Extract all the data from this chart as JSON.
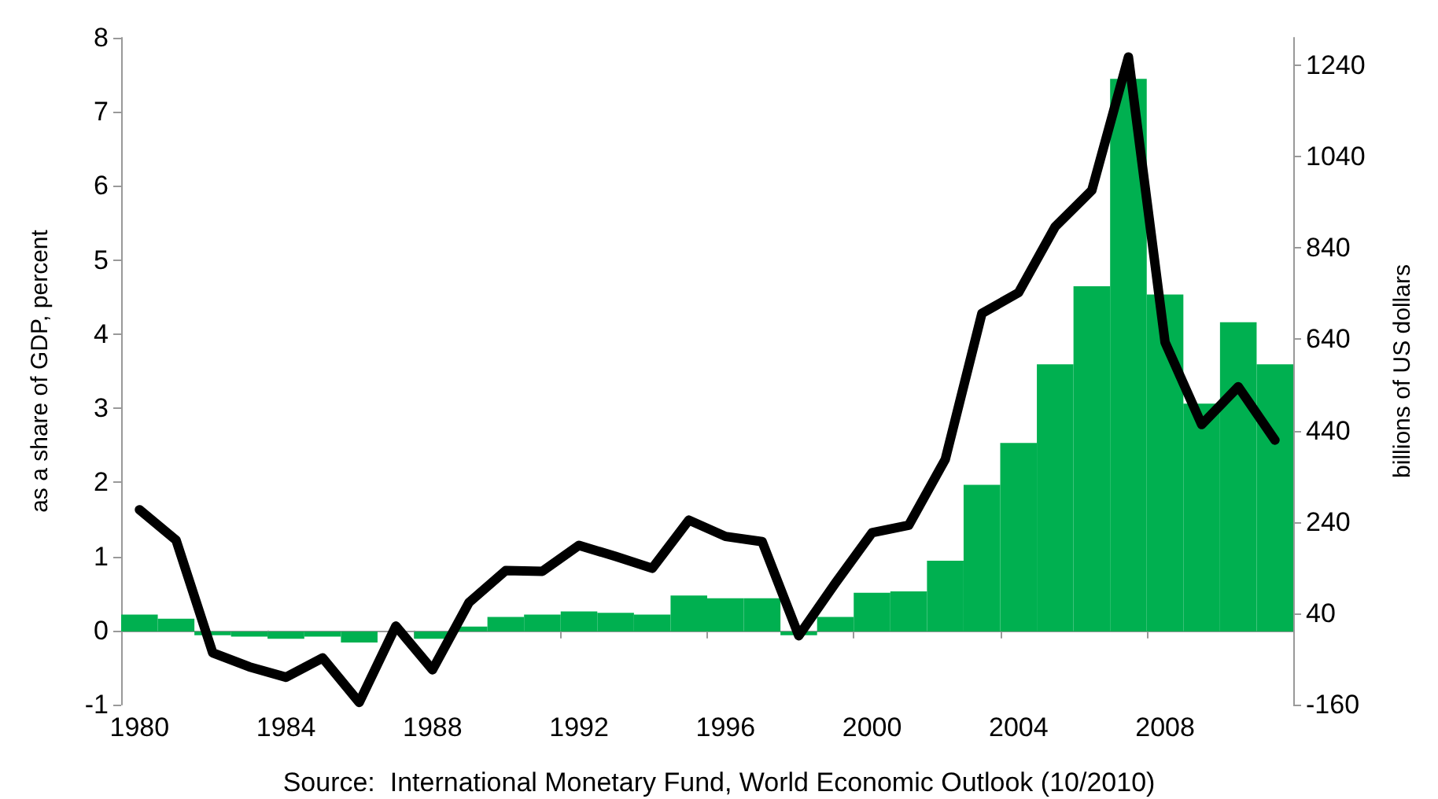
{
  "chart_data": {
    "type": "bar",
    "categories": [
      "1980",
      null,
      null,
      null,
      "1984",
      null,
      null,
      null,
      "1988",
      null,
      null,
      null,
      "1992",
      null,
      null,
      null,
      "1996",
      null,
      null,
      null,
      "2000",
      null,
      null,
      null,
      "2004",
      null,
      null,
      null,
      "2008",
      null,
      null,
      null
    ],
    "series": [
      {
        "axis": "y2",
        "color": "#00b050",
        "values": [
          37,
          28,
          -8,
          -11,
          -16,
          -11,
          -24,
          null,
          -16,
          11,
          32,
          37,
          44,
          41,
          37,
          79,
          73,
          73,
          -8,
          32,
          85,
          88,
          155,
          321,
          413,
          585,
          756,
          1210,
          738,
          499,
          677,
          585
        ]
      },
      {
        "type": "line",
        "axis": "y",
        "color": "#000000",
        "values": [
          1.63,
          1.22,
          -0.3,
          -0.49,
          -0.63,
          -0.37,
          -0.97,
          0.06,
          -0.53,
          0.38,
          0.81,
          0.8,
          1.15,
          1.0,
          0.84,
          1.49,
          1.27,
          1.2,
          -0.07,
          0.64,
          1.32,
          1.42,
          2.31,
          4.28,
          4.56,
          5.45,
          5.94,
          7.74,
          3.89,
          2.78,
          3.29,
          2.57
        ]
      }
    ],
    "ylabel": "as a share of GDP, percent",
    "y2label": "billions of US dollars",
    "ylim": [
      -1,
      8
    ],
    "yticks": [
      -1,
      0,
      1,
      2,
      3,
      4,
      5,
      6,
      7,
      8
    ],
    "y2lim": [
      -160,
      1300
    ],
    "y2ticks": [
      -160,
      40,
      240,
      440,
      640,
      840,
      1040,
      1240
    ],
    "annotations": [
      "Source:  International Monetary Fund, World Economic Outlook (10/2010)"
    ],
    "marker": "none",
    "line_style": "solid"
  }
}
